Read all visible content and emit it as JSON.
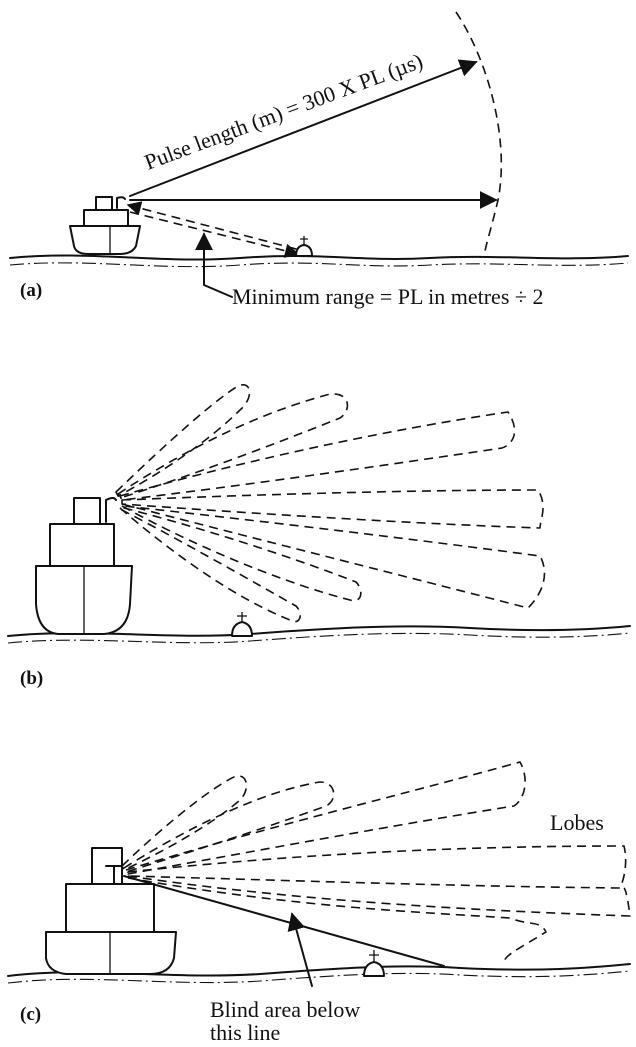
{
  "panels": {
    "a": {
      "label": "(a)",
      "pulse_length_text": "Pulse length (m) = 300 X PL (µs)",
      "minimum_range_text": "Minimum range = PL in metres ÷ 2"
    },
    "b": {
      "label": "(b)"
    },
    "c": {
      "label": "(c)",
      "lobes_text": "Lobes",
      "blind_area_line1": "Blind area below",
      "blind_area_line2": "this line"
    }
  }
}
